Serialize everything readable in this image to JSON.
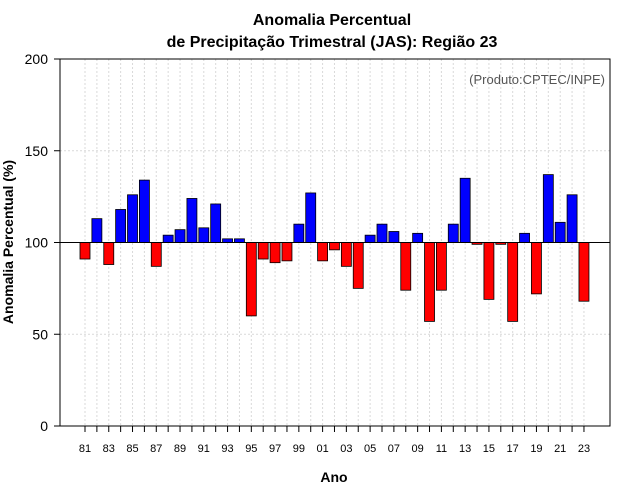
{
  "chart_data": {
    "type": "bar",
    "title_line1": "Anomalia Percentual",
    "title_line2": "de Precipitação Trimestral (JAS): Região 23",
    "xlabel": "Ano",
    "ylabel": "Anomalia Percentual (%)",
    "credit": "(Produto:CPTEC/INPE)",
    "ylim": [
      0,
      200
    ],
    "yticks": [
      0,
      50,
      100,
      150,
      200
    ],
    "baseline": 100,
    "colors": {
      "above": "#0000ff",
      "below": "#ff0000",
      "outline": "#000000",
      "grid": "#d9d9d9"
    },
    "x_tick_labels": [
      "81",
      "83",
      "85",
      "87",
      "89",
      "91",
      "93",
      "95",
      "97",
      "99",
      "01",
      "03",
      "05",
      "07",
      "09",
      "11",
      "13",
      "15",
      "17",
      "19",
      "21",
      "23"
    ],
    "categories": [
      "1981",
      "1982",
      "1983",
      "1984",
      "1985",
      "1986",
      "1987",
      "1988",
      "1989",
      "1990",
      "1991",
      "1992",
      "1993",
      "1994",
      "1995",
      "1996",
      "1997",
      "1998",
      "1999",
      "2000",
      "2001",
      "2002",
      "2003",
      "2004",
      "2005",
      "2006",
      "2007",
      "2008",
      "2009",
      "2010",
      "2011",
      "2012",
      "2013",
      "2014",
      "2015",
      "2016",
      "2017",
      "2018",
      "2019",
      "2020",
      "2021",
      "2022",
      "2023"
    ],
    "values": [
      91,
      113,
      88,
      118,
      126,
      134,
      87,
      104,
      107,
      124,
      108,
      121,
      102,
      102,
      60,
      91,
      89,
      90,
      110,
      127,
      90,
      96,
      87,
      75,
      104,
      110,
      106,
      74,
      105,
      57,
      74,
      110,
      135,
      99,
      69,
      99,
      57,
      105,
      72,
      137,
      111,
      126,
      68
    ]
  }
}
